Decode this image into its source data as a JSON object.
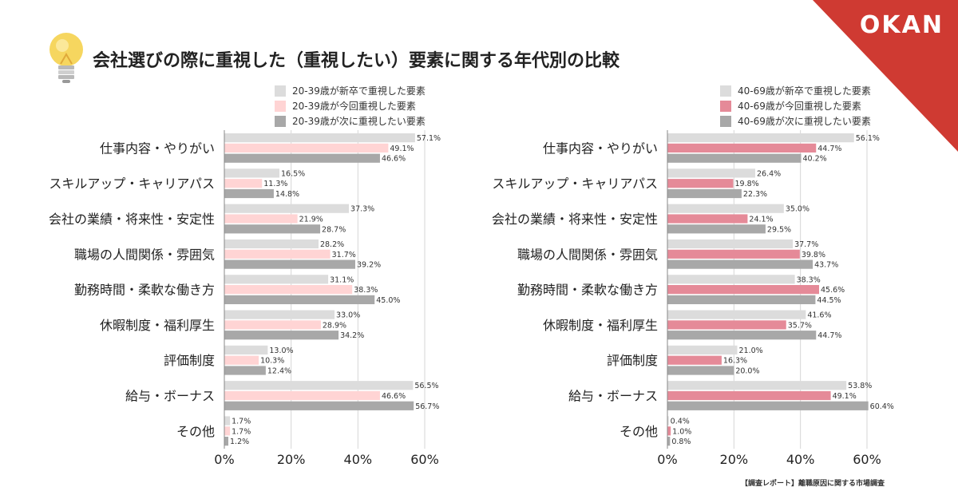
{
  "title": "会社選びの際に重視した（重視したい）要素に関する年代別の比較",
  "brand": "OKAN",
  "footer": "【調査レポート】離職原因に関する市場調査",
  "colors": {
    "corner": "#cf3a32",
    "new_grad": "#dcdcdc",
    "young_current": "#ffd4d4",
    "old_current": "#e58a98",
    "next": "#a8a8a8",
    "gridline": "#d6d6d6"
  },
  "chart_data": [
    {
      "type": "bar",
      "orientation": "horizontal",
      "categories": [
        "仕事内容・やりがい",
        "スキルアップ・キャリアパス",
        "会社の業績・将来性・安定性",
        "職場の人間関係・雰囲気",
        "勤務時間・柔軟な働き方",
        "休暇制度・福利厚生",
        "評価制度",
        "給与・ボーナス",
        "その他"
      ],
      "series": [
        {
          "name": "20-39歳が新卒で重視した要素",
          "color": "#dcdcdc",
          "values": [
            57.1,
            16.5,
            37.3,
            28.2,
            31.1,
            33.0,
            13.0,
            56.5,
            1.7
          ],
          "labels": [
            "57.1%",
            "16.5%",
            "37.3%",
            "28.2%",
            "31.1%",
            "33.0%",
            "13.0%",
            "56.5%",
            "1.7%"
          ]
        },
        {
          "name": "20-39歳が今回重視した要素",
          "color": "#ffd4d4",
          "values": [
            49.1,
            11.3,
            21.9,
            31.7,
            38.3,
            28.9,
            10.3,
            46.6,
            1.7
          ],
          "labels": [
            "49.1%",
            "11.3%",
            "21.9%",
            "31.7%",
            "38.3%",
            "28.9%",
            "10.3%",
            "46.6%",
            "1.7%"
          ]
        },
        {
          "name": "20-39歳が次に重視したい要素",
          "color": "#a8a8a8",
          "values": [
            46.6,
            14.8,
            28.7,
            39.2,
            45.0,
            34.2,
            12.4,
            56.7,
            1.2
          ],
          "labels": [
            "46.6%",
            "14.8%",
            "28.7%",
            "39.2%",
            "45.0%",
            "34.2%",
            "12.4%",
            "56.7%",
            "1.2%"
          ]
        }
      ],
      "xlim": [
        0,
        60
      ],
      "xticks": [
        "0%",
        "20%",
        "40%",
        "60%"
      ],
      "grid": "vertical"
    },
    {
      "type": "bar",
      "orientation": "horizontal",
      "categories": [
        "仕事内容・やりがい",
        "スキルアップ・キャリアパス",
        "会社の業績・将来性・安定性",
        "職場の人間関係・雰囲気",
        "勤務時間・柔軟な働き方",
        "休暇制度・福利厚生",
        "評価制度",
        "給与・ボーナス",
        "その他"
      ],
      "series": [
        {
          "name": "40-69歳が新卒で重視した要素",
          "color": "#dcdcdc",
          "values": [
            56.1,
            26.4,
            35.0,
            37.7,
            38.3,
            41.6,
            21.0,
            53.8,
            0.4
          ],
          "labels": [
            "56.1%",
            "26.4%",
            "35.0%",
            "37.7%",
            "38.3%",
            "41.6%",
            "21.0%",
            "53.8%",
            "0.4%"
          ]
        },
        {
          "name": "40-69歳が今回重視した要素",
          "color": "#e58a98",
          "values": [
            44.7,
            19.8,
            24.1,
            39.8,
            45.6,
            35.7,
            16.3,
            49.1,
            1.0
          ],
          "labels": [
            "44.7%",
            "19.8%",
            "24.1%",
            "39.8%",
            "45.6%",
            "35.7%",
            "16.3%",
            "49.1%",
            "1.0%"
          ]
        },
        {
          "name": "40-69歳が次に重視したい要素",
          "color": "#a8a8a8",
          "values": [
            40.2,
            22.3,
            29.5,
            43.7,
            44.5,
            44.7,
            20.0,
            60.4,
            0.8
          ],
          "labels": [
            "40.2%",
            "22.3%",
            "29.5%",
            "43.7%",
            "44.5%",
            "44.7%",
            "20.0%",
            "60.4%",
            "0.8%"
          ]
        }
      ],
      "xlim": [
        0,
        60
      ],
      "xticks": [
        "0%",
        "20%",
        "40%",
        "60%"
      ],
      "grid": "vertical"
    }
  ]
}
